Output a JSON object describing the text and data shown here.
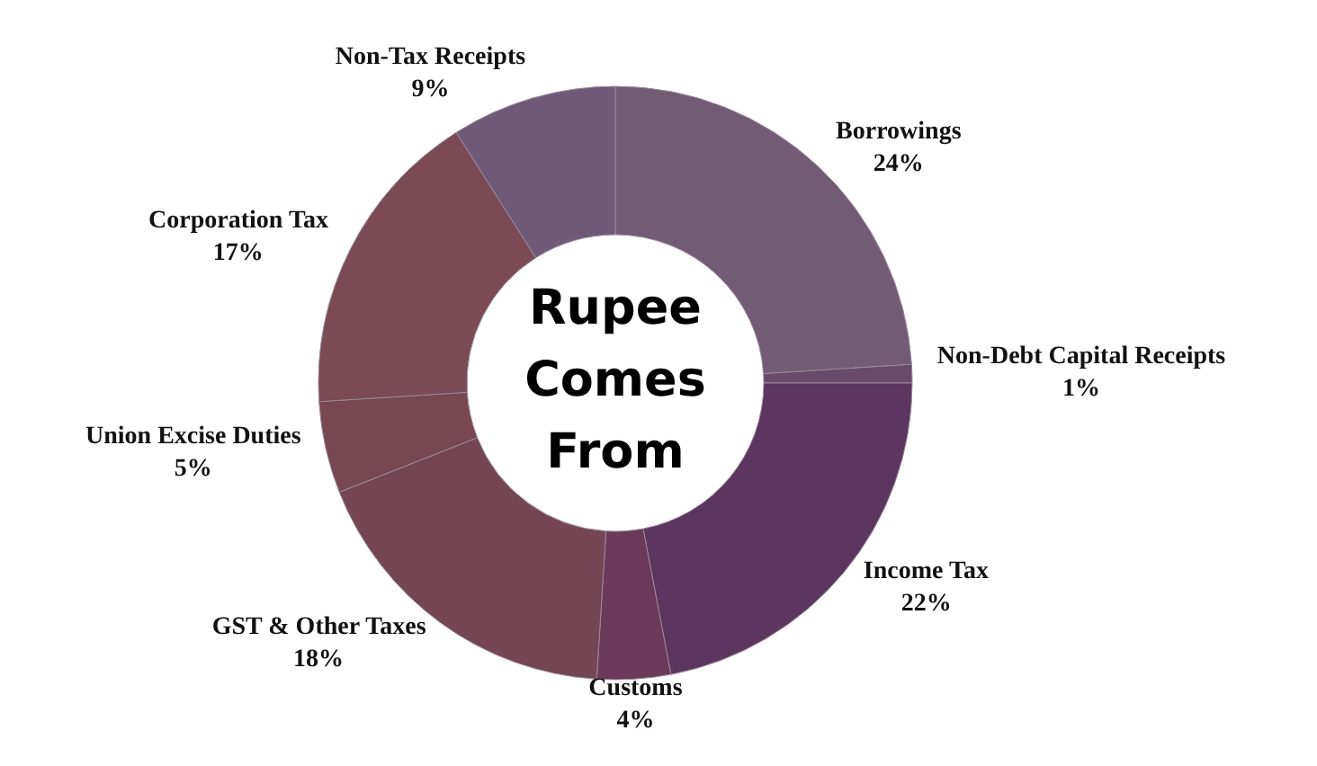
{
  "chart_data": {
    "type": "donut",
    "title": "Rupee Comes From",
    "categories": [
      "Borrowings",
      "Non-Debt Capital Receipts",
      "Income Tax",
      "Customs",
      "GST & Other Taxes",
      "Union Excise Duties",
      "Corporation Tax",
      "Non-Tax Receipts"
    ],
    "values": [
      24,
      1,
      22,
      4,
      18,
      5,
      17,
      9
    ],
    "value_labels": [
      "24%",
      "1%",
      "22%",
      "4%",
      "18%",
      "5%",
      "17%",
      "9%"
    ],
    "colors": [
      "#735b75",
      "#6a4a6a",
      "#5c3560",
      "#6b3a58",
      "#744552",
      "#774752",
      "#7a4a55",
      "#6e5a78"
    ],
    "legend": false
  }
}
